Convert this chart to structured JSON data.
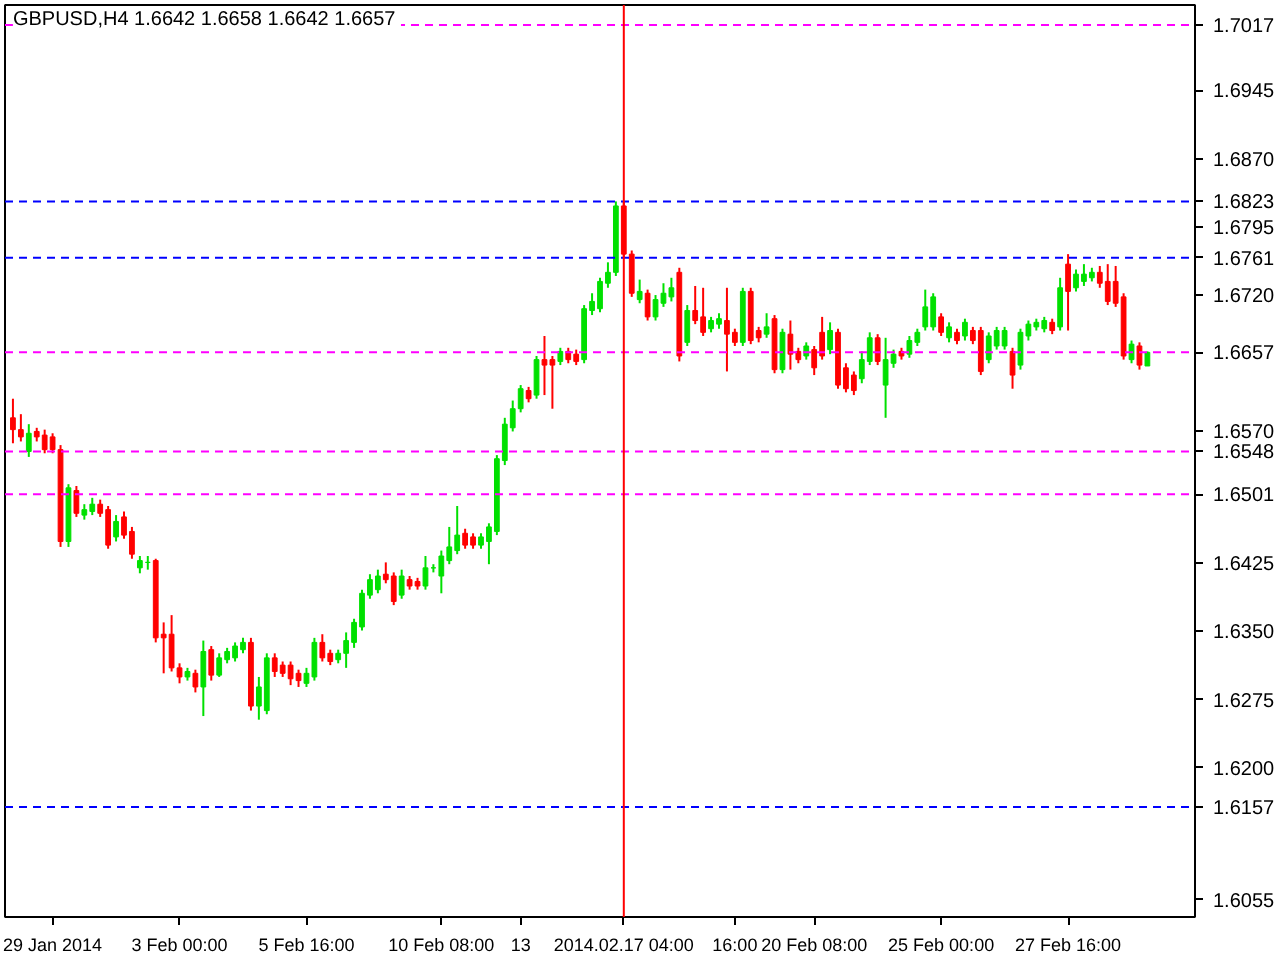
{
  "chart_data": {
    "type": "candlestick",
    "title": "GBPUSD,H4  1.6642 1.6658 1.6642 1.6657",
    "categories": [
      null,
      null,
      null,
      null,
      null,
      "29 Jan 2014",
      null,
      null,
      null,
      null,
      null,
      null,
      null,
      null,
      null,
      null,
      null,
      null,
      null,
      null,
      null,
      "3 Feb 00:00",
      null,
      null,
      null,
      null,
      null,
      null,
      null,
      null,
      null,
      null,
      null,
      null,
      null,
      null,
      null,
      "5 Feb 16:00",
      null,
      null,
      null,
      null,
      null,
      null,
      null,
      null,
      null,
      null,
      null,
      null,
      null,
      null,
      null,
      null,
      "10 Feb 08:00",
      null,
      null,
      null,
      null,
      null,
      null,
      null,
      null,
      null,
      "13",
      null,
      null,
      null,
      null,
      null,
      null,
      null,
      null,
      null,
      null,
      null,
      null,
      "2014.02.17 04:00",
      null,
      null,
      null,
      null,
      null,
      null,
      null,
      null,
      null,
      null,
      null,
      null,
      null,
      "16:00",
      null,
      null,
      null,
      null,
      null,
      null,
      null,
      null,
      null,
      "20 Feb 08:00",
      null,
      null,
      null,
      null,
      null,
      null,
      null,
      null,
      null,
      null,
      null,
      null,
      null,
      null,
      null,
      "25 Feb 00:00",
      null,
      null,
      null,
      null,
      null,
      null,
      null,
      null,
      null,
      null,
      null,
      null,
      null,
      null,
      null,
      "27 Feb 16:00",
      null,
      null,
      null,
      null,
      null,
      null,
      null,
      null,
      null,
      null
    ],
    "ohlc": [
      [
        1.6585,
        1.6606,
        1.6557,
        1.6572
      ],
      [
        1.6572,
        1.6589,
        1.6559,
        1.6564
      ],
      [
        1.6548,
        1.6578,
        1.6542,
        1.6568
      ],
      [
        1.657,
        1.6574,
        1.6559,
        1.6564
      ],
      [
        1.6566,
        1.6572,
        1.6546,
        1.655
      ],
      [
        1.6564,
        1.6568,
        1.6546,
        1.655
      ],
      [
        1.655,
        1.6555,
        1.6443,
        1.6449
      ],
      [
        1.6449,
        1.6512,
        1.6443,
        1.6508
      ],
      [
        1.6505,
        1.651,
        1.6476,
        1.648
      ],
      [
        1.6478,
        1.649,
        1.6473,
        1.6484
      ],
      [
        1.6482,
        1.6497,
        1.6478,
        1.649
      ],
      [
        1.649,
        1.6495,
        1.6476,
        1.648
      ],
      [
        1.6484,
        1.6488,
        1.6441,
        1.6445
      ],
      [
        1.6454,
        1.6478,
        1.6449,
        1.6471
      ],
      [
        1.6476,
        1.6482,
        1.6452,
        1.6456
      ],
      [
        1.646,
        1.6465,
        1.643,
        1.6435
      ],
      [
        1.642,
        1.6433,
        1.6414,
        1.6428
      ],
      [
        1.6426,
        1.6433,
        1.6418,
        1.6426
      ],
      [
        1.6428,
        1.643,
        1.6338,
        1.6343
      ],
      [
        1.6347,
        1.636,
        1.6304,
        1.6343
      ],
      [
        1.6347,
        1.6368,
        1.6306,
        1.631
      ],
      [
        1.631,
        1.6315,
        1.6293,
        1.63
      ],
      [
        1.63,
        1.631,
        1.6296,
        1.6306
      ],
      [
        1.6304,
        1.6308,
        1.6283,
        1.6289
      ],
      [
        1.6289,
        1.634,
        1.6257,
        1.6328
      ],
      [
        1.633,
        1.6334,
        1.6296,
        1.6302
      ],
      [
        1.6302,
        1.6326,
        1.63,
        1.6321
      ],
      [
        1.6319,
        1.6332,
        1.6315,
        1.6328
      ],
      [
        1.6321,
        1.6338,
        1.6317,
        1.6334
      ],
      [
        1.633,
        1.6343,
        1.6326,
        1.6338
      ],
      [
        1.6338,
        1.6343,
        1.6263,
        1.6268
      ],
      [
        1.6268,
        1.63,
        1.6253,
        1.6289
      ],
      [
        1.6263,
        1.6326,
        1.6259,
        1.6321
      ],
      [
        1.6321,
        1.6326,
        1.63,
        1.6306
      ],
      [
        1.6313,
        1.6317,
        1.63,
        1.6304
      ],
      [
        1.6313,
        1.6317,
        1.6291,
        1.6298
      ],
      [
        1.6304,
        1.6308,
        1.6289,
        1.6296
      ],
      [
        1.6293,
        1.631,
        1.6289,
        1.6304
      ],
      [
        1.63,
        1.6343,
        1.6296,
        1.6338
      ],
      [
        1.6338,
        1.6347,
        1.6317,
        1.6321
      ],
      [
        1.6326,
        1.633,
        1.6313,
        1.6317
      ],
      [
        1.6319,
        1.633,
        1.6315,
        1.6326
      ],
      [
        1.6326,
        1.6349,
        1.631,
        1.634
      ],
      [
        1.6338,
        1.6364,
        1.6332,
        1.636
      ],
      [
        1.6355,
        1.6396,
        1.6351,
        1.6392
      ],
      [
        1.639,
        1.6413,
        1.6386,
        1.6407
      ],
      [
        1.6396,
        1.6418,
        1.6392,
        1.6411
      ],
      [
        1.6413,
        1.6426,
        1.6403,
        1.6407
      ],
      [
        1.6411,
        1.6415,
        1.6379,
        1.6383
      ],
      [
        1.639,
        1.6418,
        1.6386,
        1.6411
      ],
      [
        1.6407,
        1.6411,
        1.6396,
        1.64
      ],
      [
        1.6405,
        1.6409,
        1.6396,
        1.64
      ],
      [
        1.64,
        1.6433,
        1.6396,
        1.642
      ],
      [
        1.642,
        1.6424,
        1.6415,
        1.642
      ],
      [
        1.6411,
        1.6439,
        1.6392,
        1.6433
      ],
      [
        1.6428,
        1.6465,
        1.6424,
        1.6443
      ],
      [
        1.6439,
        1.6488,
        1.6435,
        1.6456
      ],
      [
        1.6458,
        1.6463,
        1.6441,
        1.6445
      ],
      [
        1.6454,
        1.6458,
        1.6441,
        1.6445
      ],
      [
        1.6445,
        1.6458,
        1.6441,
        1.6454
      ],
      [
        1.6449,
        1.6469,
        1.6424,
        1.6465
      ],
      [
        1.646,
        1.6544,
        1.6456,
        1.654
      ],
      [
        1.6538,
        1.6585,
        1.6533,
        1.6578
      ],
      [
        1.6574,
        1.6604,
        1.657,
        1.6595
      ],
      [
        1.6595,
        1.6621,
        1.6591,
        1.6617
      ],
      [
        1.6615,
        1.6619,
        1.6602,
        1.6606
      ],
      [
        1.661,
        1.6653,
        1.6606,
        1.6649
      ],
      [
        1.6649,
        1.6675,
        1.661,
        1.6643
      ],
      [
        1.6649,
        1.6653,
        1.6595,
        1.6643
      ],
      [
        1.6647,
        1.6662,
        1.6643,
        1.6658
      ],
      [
        1.6658,
        1.6662,
        1.6645,
        1.6649
      ],
      [
        1.6655,
        1.666,
        1.6643,
        1.6647
      ],
      [
        1.6649,
        1.6709,
        1.6645,
        1.6705
      ],
      [
        1.6703,
        1.6722,
        1.6698,
        1.6713
      ],
      [
        1.6705,
        1.6739,
        1.6701,
        1.6735
      ],
      [
        1.6733,
        1.6756,
        1.6728,
        1.6745
      ],
      [
        1.6745,
        1.6823,
        1.6741,
        1.6818
      ],
      [
        1.6818,
        1.6823,
        1.676,
        1.6765
      ],
      [
        1.6765,
        1.6769,
        1.6718,
        1.6722
      ],
      [
        1.6715,
        1.6737,
        1.6711,
        1.6724
      ],
      [
        1.6722,
        1.6726,
        1.6692,
        1.6696
      ],
      [
        1.6696,
        1.672,
        1.6692,
        1.6715
      ],
      [
        1.6711,
        1.6733,
        1.6707,
        1.6722
      ],
      [
        1.6718,
        1.6739,
        1.6713,
        1.6728
      ],
      [
        1.6745,
        1.675,
        1.6647,
        1.6653
      ],
      [
        1.6668,
        1.6709,
        1.6664,
        1.6703
      ],
      [
        1.6703,
        1.673,
        1.6688,
        1.6692
      ],
      [
        1.6696,
        1.6728,
        1.6675,
        1.6679
      ],
      [
        1.6683,
        1.6696,
        1.6679,
        1.6692
      ],
      [
        1.6688,
        1.67,
        1.6683,
        1.6694
      ],
      [
        1.6692,
        1.6728,
        1.6636,
        1.6677
      ],
      [
        1.6679,
        1.6683,
        1.6664,
        1.6668
      ],
      [
        1.6668,
        1.6728,
        1.6664,
        1.6724
      ],
      [
        1.6724,
        1.6728,
        1.6666,
        1.667
      ],
      [
        1.6681,
        1.6685,
        1.6668,
        1.6673
      ],
      [
        1.6677,
        1.67,
        1.6673,
        1.6685
      ],
      [
        1.6694,
        1.6698,
        1.6634,
        1.6638
      ],
      [
        1.6638,
        1.6683,
        1.6634,
        1.6679
      ],
      [
        1.6677,
        1.6692,
        1.6638,
        1.6655
      ],
      [
        1.6658,
        1.6662,
        1.6645,
        1.6649
      ],
      [
        1.6653,
        1.6668,
        1.6649,
        1.6664
      ],
      [
        1.666,
        1.6664,
        1.6632,
        1.664
      ],
      [
        1.6679,
        1.6696,
        1.6649,
        1.6653
      ],
      [
        1.666,
        1.669,
        1.6655,
        1.6681
      ],
      [
        1.6679,
        1.6683,
        1.6617,
        1.6621
      ],
      [
        1.664,
        1.6645,
        1.6613,
        1.6617
      ],
      [
        1.6632,
        1.6636,
        1.661,
        1.6615
      ],
      [
        1.6628,
        1.6658,
        1.6623,
        1.6649
      ],
      [
        1.6647,
        1.6679,
        1.6643,
        1.6673
      ],
      [
        1.6673,
        1.6677,
        1.6643,
        1.6647
      ],
      [
        1.6621,
        1.6673,
        1.6585,
        1.6649
      ],
      [
        1.6645,
        1.666,
        1.664,
        1.6655
      ],
      [
        1.6658,
        1.6662,
        1.6649,
        1.6653
      ],
      [
        1.6655,
        1.6675,
        1.6651,
        1.667
      ],
      [
        1.6668,
        1.6683,
        1.6664,
        1.6679
      ],
      [
        1.6685,
        1.6726,
        1.6681,
        1.6707
      ],
      [
        1.6685,
        1.6722,
        1.6681,
        1.6718
      ],
      [
        1.6696,
        1.67,
        1.6675,
        1.6679
      ],
      [
        1.6673,
        1.669,
        1.6668,
        1.6685
      ],
      [
        1.6679,
        1.6683,
        1.6666,
        1.667
      ],
      [
        1.6675,
        1.6694,
        1.667,
        1.669
      ],
      [
        1.6681,
        1.6685,
        1.6666,
        1.667
      ],
      [
        1.6681,
        1.6685,
        1.6632,
        1.6636
      ],
      [
        1.6649,
        1.6679,
        1.6645,
        1.6675
      ],
      [
        1.6664,
        1.6685,
        1.666,
        1.6681
      ],
      [
        1.6664,
        1.6685,
        1.666,
        1.6681
      ],
      [
        1.6658,
        1.6662,
        1.6617,
        1.6632
      ],
      [
        1.6643,
        1.6683,
        1.6638,
        1.6679
      ],
      [
        1.6675,
        1.6692,
        1.667,
        1.6688
      ],
      [
        1.6685,
        1.6694,
        1.6681,
        1.669
      ],
      [
        1.6683,
        1.6696,
        1.6679,
        1.6692
      ],
      [
        1.669,
        1.6694,
        1.6677,
        1.6681
      ],
      [
        1.6685,
        1.6739,
        1.6681,
        1.6728
      ],
      [
        1.6754,
        1.6765,
        1.6681,
        1.6724
      ],
      [
        1.6728,
        1.6748,
        1.6724,
        1.6743
      ],
      [
        1.6735,
        1.6754,
        1.673,
        1.6743
      ],
      [
        1.6739,
        1.675,
        1.6735,
        1.6745
      ],
      [
        1.6745,
        1.6752,
        1.6728,
        1.6733
      ],
      [
        1.6735,
        1.6754,
        1.6709,
        1.6713
      ],
      [
        1.6735,
        1.6752,
        1.6707,
        1.6711
      ],
      [
        1.6718,
        1.6722,
        1.6649,
        1.6653
      ],
      [
        1.6649,
        1.667,
        1.6645,
        1.6666
      ],
      [
        1.6664,
        1.6668,
        1.6638,
        1.6643
      ],
      [
        1.6642,
        1.6658,
        1.6642,
        1.6657
      ]
    ],
    "ylim": [
      1.6036,
      1.7039
    ],
    "yticks": [
      1.6055,
      {
        "value": 1.62,
        "label": "1.6200"
      },
      1.6275,
      {
        "value": 1.635,
        "label": "1.6350"
      },
      1.6425,
      {
        "value": 1.657,
        "label": "1.6570"
      },
      {
        "value": 1.672,
        "label": "1.6720"
      },
      1.6795,
      {
        "value": 1.687,
        "label": "1.6870"
      },
      1.6945
    ],
    "ref_lines": [
      {
        "axis": "y",
        "value": 1.7017,
        "label": "1.7017",
        "color": "#ff00ff",
        "line_style": "dashed"
      },
      {
        "axis": "y",
        "value": 1.6823,
        "label": "1.6823",
        "color": "#0000ff",
        "line_style": "dashed"
      },
      {
        "axis": "y",
        "value": 1.6761,
        "label": "1.6761",
        "color": "#0000ff",
        "line_style": "dashed"
      },
      {
        "axis": "y",
        "value": 1.6657,
        "label": "1.6657",
        "color": "#ff00ff",
        "line_style": "dashed"
      },
      {
        "axis": "y",
        "value": 1.6548,
        "label": "1.6548",
        "color": "#ff00ff",
        "line_style": "dashed"
      },
      {
        "axis": "y",
        "value": 1.6501,
        "label": "1.6501",
        "color": "#ff00ff",
        "line_style": "dashed"
      },
      {
        "axis": "y",
        "value": 1.6157,
        "label": "1.6157",
        "color": "#0000ff",
        "line_style": "dashed"
      },
      {
        "axis": "x",
        "value": "2014.02.17 04:00",
        "color": "#ff0000",
        "line_style": "solid"
      }
    ],
    "grid": false
  }
}
